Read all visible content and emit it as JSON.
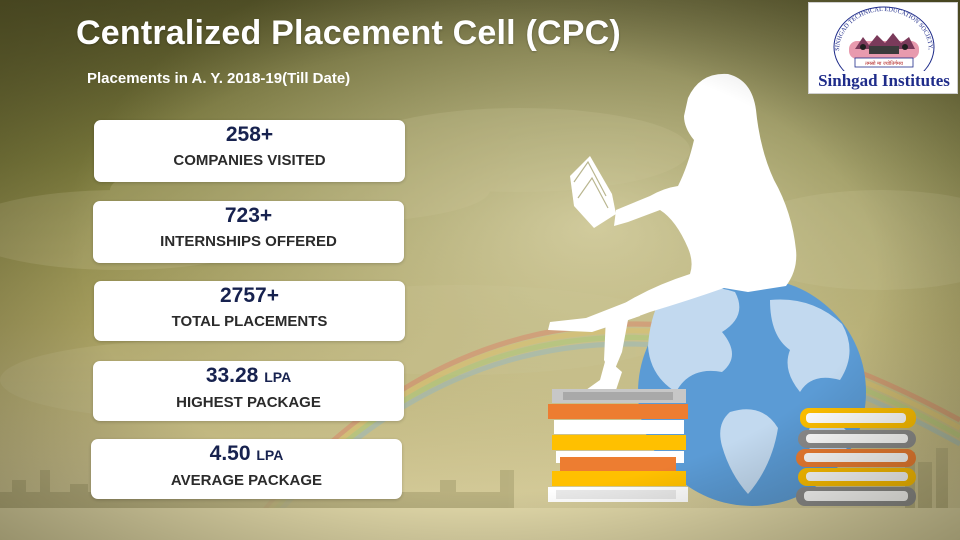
{
  "header": {
    "title": "Centralized Placement Cell (CPC)",
    "subtitle": "Placements in  A. Y. 2018-19(Till Date)"
  },
  "stats": [
    {
      "value": "258+",
      "unit": "",
      "label": "COMPANIES VISITED"
    },
    {
      "value": "723+",
      "unit": "",
      "label": "INTERNSHIPS OFFERED"
    },
    {
      "value": "2757+",
      "unit": "",
      "label": "TOTAL PLACEMENTS"
    },
    {
      "value": "33.28",
      "unit": "LPA",
      "label": "HIGHEST PACKAGE"
    },
    {
      "value": "4.50",
      "unit": "LPA",
      "label": "AVERAGE PACKAGE"
    }
  ],
  "logo": {
    "name": "Sinhgad Institutes",
    "ring_text": "SINHGAD TECHNICAL EDUCATION SOCIETY, PUNE",
    "motto": "तमसो मा ज्योतिर्गमय"
  },
  "colors": {
    "value_text": "#17224f",
    "logo_text": "#1f2c8a",
    "globe": "#5b9bd5"
  }
}
